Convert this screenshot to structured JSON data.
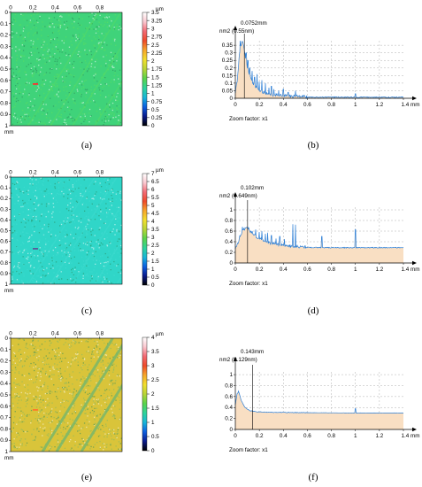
{
  "chart_data": [
    {
      "id": "a",
      "type": "heatmap",
      "caption": "(a)",
      "x_ticks": [
        "0",
        "0.2",
        "0.4",
        "0.6",
        "0.8"
      ],
      "y_ticks": [
        "0",
        "0.1",
        "0.2",
        "0.3",
        "0.4",
        "0.5",
        "0.6",
        "0.7",
        "0.8",
        "0.9",
        "1"
      ],
      "xlim": [
        0,
        1
      ],
      "ylim": [
        0,
        1
      ],
      "axis_unit": "mm",
      "colorbar": {
        "unit": "µm",
        "max": 3.5,
        "ticks": [
          "3.5",
          "3.25",
          "3",
          "2.75",
          "2.5",
          "2.25",
          "2",
          "1.75",
          "1.5",
          "1.25",
          "1",
          "0.75",
          "0.5",
          "0.25",
          "0"
        ]
      },
      "dominant_color": "#3fd37a",
      "dominant_value": 1.55,
      "stripe_color": "#62e05a",
      "spot_color": "#ff3030"
    },
    {
      "id": "b",
      "type": "line",
      "caption": "(b)",
      "cursor_label": "0.0752mm",
      "value_label": "nm2 (0.55nm)",
      "cursor_x": 0.0752,
      "x_ticks": [
        "0",
        "0.2",
        "0.4",
        "0.6",
        "0.8",
        "1",
        "1.2",
        "1.4 mm"
      ],
      "y_ticks": [
        "0",
        "0.05",
        "0.1",
        "0.15",
        "0.2",
        "0.25",
        "0.3",
        "0.35"
      ],
      "xlim": [
        0,
        1.4
      ],
      "ylim": [
        0,
        0.38
      ],
      "zoom_label": "Zoom factor: x1",
      "baseline": 0.005,
      "decay": [
        [
          0,
          0.03
        ],
        [
          0.02,
          0.14
        ],
        [
          0.035,
          0.3
        ],
        [
          0.05,
          0.355
        ],
        [
          0.062,
          0.37
        ],
        [
          0.08,
          0.29
        ],
        [
          0.1,
          0.2
        ],
        [
          0.12,
          0.14
        ],
        [
          0.15,
          0.09
        ],
        [
          0.2,
          0.05
        ],
        [
          0.25,
          0.03
        ],
        [
          0.3,
          0.02
        ],
        [
          0.4,
          0.012
        ],
        [
          0.5,
          0.008
        ],
        [
          0.6,
          0.006
        ]
      ],
      "peaks": [
        [
          0.04,
          0.38
        ],
        [
          0.055,
          0.37
        ],
        [
          0.066,
          0.3
        ],
        [
          0.09,
          0.3
        ],
        [
          0.105,
          0.25
        ],
        [
          0.12,
          0.2
        ],
        [
          0.14,
          0.18
        ],
        [
          0.16,
          0.14
        ],
        [
          0.18,
          0.16
        ],
        [
          0.2,
          0.11
        ],
        [
          0.22,
          0.12
        ],
        [
          0.25,
          0.1
        ],
        [
          0.28,
          0.07
        ],
        [
          0.3,
          0.08
        ],
        [
          0.32,
          0.06
        ],
        [
          0.36,
          0.05
        ],
        [
          0.4,
          0.06
        ],
        [
          0.44,
          0.04
        ],
        [
          0.5,
          0.05
        ],
        [
          1.0,
          0.03
        ]
      ],
      "noise_amp": 0.02,
      "fill_color": "#f9dfc3",
      "line_color": "#2d7fd6"
    },
    {
      "id": "c",
      "type": "heatmap",
      "caption": "(c)",
      "x_ticks": [
        "0",
        "0.2",
        "0.4",
        "0.6",
        "0.8"
      ],
      "y_ticks": [
        "0",
        "0.1",
        "0.2",
        "0.3",
        "0.4",
        "0.5",
        "0.6",
        "0.7",
        "0.8",
        "0.9",
        "1"
      ],
      "xlim": [
        0,
        1
      ],
      "ylim": [
        0,
        1
      ],
      "axis_unit": "mm",
      "colorbar": {
        "unit": "µm",
        "max": 7,
        "ticks": [
          "7",
          "6.5",
          "6",
          "5.5",
          "5",
          "4.5",
          "4",
          "3.5",
          "3",
          "2.5",
          "2",
          "1.5",
          "1",
          "0.5",
          "0"
        ]
      },
      "dominant_color": "#30d6c8",
      "dominant_value": 2.9,
      "stripe_color": "#44dcd2",
      "spot_color": "#5a5a9a"
    },
    {
      "id": "d",
      "type": "line",
      "caption": "(d)",
      "cursor_label": "0.102mm",
      "value_label": "nm2 (0.649nm)",
      "cursor_x": 0.102,
      "x_ticks": [
        "0",
        "0.2",
        "0.4",
        "0.6",
        "0.8",
        "1",
        "1.2",
        "1.4 mm"
      ],
      "y_ticks": [
        "0",
        "0.2",
        "0.4",
        "0.6",
        "0.8",
        "1"
      ],
      "xlim": [
        0,
        1.4
      ],
      "ylim": [
        0,
        1.05
      ],
      "zoom_label": "Zoom factor: x1",
      "baseline": 0.28,
      "decay": [
        [
          0,
          0.28
        ],
        [
          0.02,
          0.35
        ],
        [
          0.04,
          0.5
        ],
        [
          0.06,
          0.6
        ],
        [
          0.08,
          0.63
        ],
        [
          0.1,
          0.65
        ],
        [
          0.12,
          0.6
        ],
        [
          0.15,
          0.52
        ],
        [
          0.2,
          0.45
        ],
        [
          0.25,
          0.4
        ],
        [
          0.3,
          0.36
        ],
        [
          0.4,
          0.32
        ],
        [
          0.5,
          0.3
        ],
        [
          0.6,
          0.29
        ],
        [
          0.8,
          0.285
        ]
      ],
      "peaks": [
        [
          0.06,
          0.68
        ],
        [
          0.09,
          0.66
        ],
        [
          0.11,
          0.67
        ],
        [
          0.14,
          0.6
        ],
        [
          0.17,
          0.63
        ],
        [
          0.2,
          0.58
        ],
        [
          0.22,
          0.6
        ],
        [
          0.25,
          0.55
        ],
        [
          0.27,
          0.57
        ],
        [
          0.3,
          0.52
        ],
        [
          0.34,
          0.46
        ],
        [
          0.37,
          0.5
        ],
        [
          0.41,
          0.45
        ],
        [
          0.48,
          0.73
        ],
        [
          0.5,
          0.72
        ],
        [
          0.72,
          0.5
        ],
        [
          1.0,
          0.63
        ]
      ],
      "noise_amp": 0.05,
      "fill_color": "#f9dfc3",
      "line_color": "#2d7fd6"
    },
    {
      "id": "e",
      "type": "heatmap",
      "caption": "(e)",
      "x_ticks": [
        "0",
        "0.2",
        "0.4",
        "0.6",
        "0.8"
      ],
      "y_ticks": [
        "0",
        "0.1",
        "0.2",
        "0.3",
        "0.4",
        "0.5",
        "0.6",
        "0.7",
        "0.8",
        "0.9",
        "1"
      ],
      "xlim": [
        0,
        1
      ],
      "ylim": [
        0,
        1
      ],
      "axis_unit": "mm",
      "colorbar": {
        "unit": "µm",
        "max": 4,
        "ticks": [
          "4",
          "3.5",
          "3",
          "2.5",
          "2",
          "1.5",
          "1",
          "0.5",
          "0"
        ]
      },
      "dominant_color": "#d9c43a",
      "dominant_value": 2.7,
      "stripe_color": "#7ab86a",
      "spot_color": "#ff7a2a"
    },
    {
      "id": "f",
      "type": "line",
      "caption": "(f)",
      "cursor_label": "0.143mm",
      "value_label": "nm2 (0.129nm)",
      "cursor_x": 0.143,
      "x_ticks": [
        "0",
        "0.2",
        "0.4",
        "0.6",
        "0.8",
        "1",
        "1.2",
        "1.4 mm"
      ],
      "y_ticks": [
        "0",
        "0.2",
        "0.4",
        "0.6",
        "0.8",
        "1"
      ],
      "xlim": [
        0,
        1.4
      ],
      "ylim": [
        0,
        1.05
      ],
      "zoom_label": "Zoom factor: x1",
      "baseline": 0.3,
      "decay": [
        [
          0,
          0.45
        ],
        [
          0.015,
          0.65
        ],
        [
          0.03,
          0.68
        ],
        [
          0.05,
          0.52
        ],
        [
          0.08,
          0.4
        ],
        [
          0.12,
          0.34
        ],
        [
          0.18,
          0.32
        ],
        [
          0.3,
          0.31
        ],
        [
          0.6,
          0.305
        ],
        [
          1.0,
          0.3
        ]
      ],
      "peaks": [
        [
          0.025,
          0.7
        ],
        [
          0.04,
          0.6
        ],
        [
          0.07,
          0.45
        ],
        [
          1.0,
          0.38
        ]
      ],
      "noise_amp": 0.01,
      "fill_color": "#f9dfc3",
      "line_color": "#2d7fd6"
    }
  ]
}
